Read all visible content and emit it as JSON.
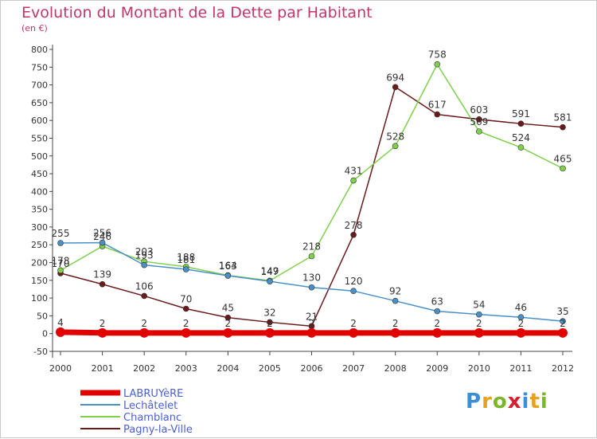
{
  "header": {
    "title": "Evolution du Montant de la Dette par Habitant",
    "subtitle": "(en €)"
  },
  "logo": {
    "letters": [
      "P",
      "r",
      "o",
      "x",
      "i",
      "t",
      "i"
    ],
    "colors": [
      "#3a8ed8",
      "#e8a020",
      "#7ab82a",
      "#d42030",
      "#3a8ed8",
      "#e8a020",
      "#7ab82a"
    ]
  },
  "chart_data": {
    "type": "line",
    "title": "Evolution du Montant de la Dette par Habitant",
    "subtitle": "(en €)",
    "xlabel": "",
    "ylabel": "",
    "x": [
      "2000",
      "2001",
      "2002",
      "2003",
      "2004",
      "2005",
      "2006",
      "2007",
      "2008",
      "2009",
      "2010",
      "2011",
      "2012"
    ],
    "ylim": [
      -50,
      800
    ],
    "yticks": [
      -50,
      0,
      50,
      100,
      150,
      200,
      250,
      300,
      350,
      400,
      450,
      500,
      550,
      600,
      650,
      700,
      750,
      800
    ],
    "grid": false,
    "legend_position": "bottom-left",
    "series": [
      {
        "name": "LABRUYèRE",
        "color": "#e00000",
        "values": [
          4,
          2,
          2,
          2,
          2,
          2,
          2,
          2,
          2,
          2,
          2,
          2,
          2
        ]
      },
      {
        "name": "Lechâtelet",
        "color": "#4a90c8",
        "values": [
          255,
          256,
          193,
          181,
          163,
          147,
          130,
          120,
          92,
          63,
          54,
          46,
          35
        ]
      },
      {
        "name": "Chamblanc",
        "color": "#7fd04a",
        "values": [
          178,
          246,
          203,
          188,
          164,
          149,
          218,
          431,
          528,
          758,
          569,
          524,
          465
        ]
      },
      {
        "name": "Pagny-la-Ville",
        "color": "#6a1a1a",
        "values": [
          170,
          139,
          106,
          70,
          45,
          32,
          21,
          278,
          694,
          617,
          603,
          591,
          581
        ]
      }
    ]
  }
}
